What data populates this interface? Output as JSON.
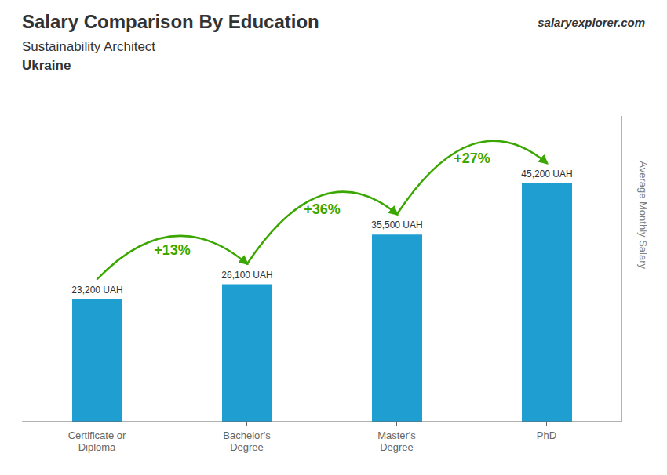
{
  "chart_data": {
    "type": "bar",
    "title": "Salary Comparison By Education",
    "subtitle": [
      "Sustainability Architect",
      "Ukraine"
    ],
    "categories": [
      "Certificate or\nDiploma",
      "Bachelor's\nDegree",
      "Master's\nDegree",
      "PhD"
    ],
    "values": [
      23200,
      26100,
      35500,
      45200
    ],
    "value_labels": [
      "23,200 UAH",
      "26,100 UAH",
      "35,500 UAH",
      "45,200 UAH"
    ],
    "data_labels": true,
    "ylabel": "Average Monthly Salary",
    "ylim": [
      0,
      58000
    ],
    "tick_labels": "x",
    "grid": false,
    "color": "#1f9ed1",
    "annotations": [
      {
        "text": "salaryexplorer.com"
      },
      {
        "text": "+13%",
        "from": "Certificate or\nDiploma",
        "to": "Bachelor's\nDegree",
        "color": "#3aa700"
      },
      {
        "text": "+36%",
        "from": "Bachelor's\nDegree",
        "to": "Master's\nDegree",
        "color": "#3aa700"
      },
      {
        "text": "+27%",
        "from": "Master's\nDegree",
        "to": "PhD",
        "color": "#3aa700"
      }
    ]
  }
}
